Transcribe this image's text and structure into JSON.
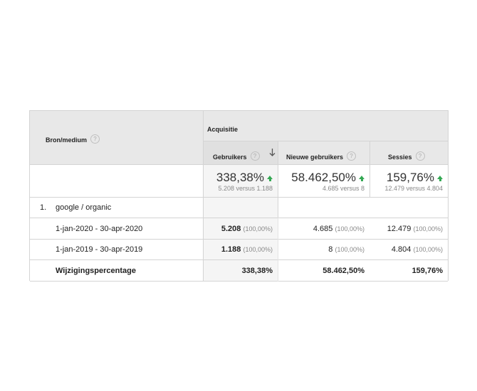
{
  "header": {
    "dimension": "Bron/medium",
    "group": "Acquisitie",
    "columns": [
      {
        "label": "Gebruikers",
        "sorted": true
      },
      {
        "label": "Nieuwe gebruikers"
      },
      {
        "label": "Sessies"
      }
    ],
    "help_glyph": "?"
  },
  "totals": [
    {
      "value": "338,38%",
      "detail": "5.208 versus 1.188"
    },
    {
      "value": "58.462,50%",
      "detail": "4.685 versus 8"
    },
    {
      "value": "159,76%",
      "detail": "12.479 versus 4.804"
    }
  ],
  "group_row": {
    "index": "1.",
    "label": "google / organic"
  },
  "rows": [
    {
      "label": "1-jan-2020 - 30-apr-2020",
      "cells": [
        {
          "value": "5.208",
          "pct": "(100,00%)"
        },
        {
          "value": "4.685",
          "pct": "(100,00%)"
        },
        {
          "value": "12.479",
          "pct": "(100,00%)"
        }
      ]
    },
    {
      "label": "1-jan-2019 - 30-apr-2019",
      "cells": [
        {
          "value": "1.188",
          "pct": "(100,00%)"
        },
        {
          "value": "8",
          "pct": "(100,00%)"
        },
        {
          "value": "4.804",
          "pct": "(100,00%)"
        }
      ]
    }
  ],
  "change_row": {
    "label": "Wijzigingspercentage",
    "values": [
      "338,38%",
      "58.462,50%",
      "159,76%"
    ]
  },
  "colors": {
    "header_bg": "#e8e8e8",
    "sorted_col_bg": "#f5f5f5",
    "trend_up": "#34a853",
    "border": "#d4d4d4"
  },
  "icons": {
    "sort": "arrow-down-icon",
    "trend": "trend-up-icon",
    "help": "help-circle-icon"
  }
}
